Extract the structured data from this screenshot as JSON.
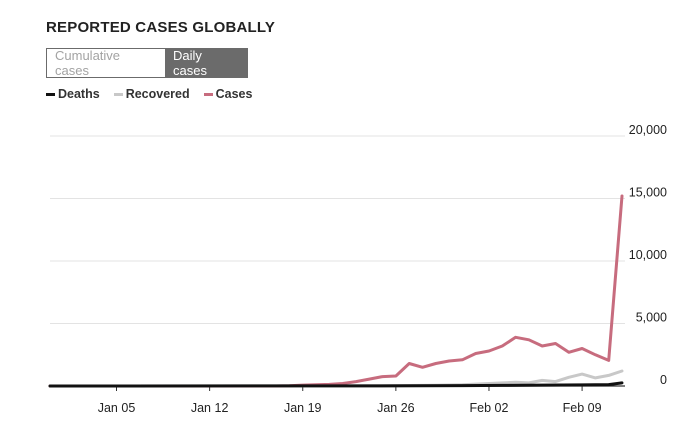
{
  "title": "REPORTED CASES GLOBALLY",
  "toggle": {
    "cumulative_label": "Cumulative cases",
    "daily_label": "Daily cases",
    "selected": "Daily cases"
  },
  "legend": [
    {
      "name": "Deaths",
      "color": "#111111"
    },
    {
      "name": "Recovered",
      "color": "#c8c8c8"
    },
    {
      "name": "Cases",
      "color": "#c76c7e"
    }
  ],
  "chart_data": {
    "type": "line",
    "title": "REPORTED CASES GLOBALLY",
    "xlabel": "",
    "ylabel": "",
    "x_start": "Dec 31",
    "x_end": "Feb 12",
    "x_ticks": [
      {
        "label": "Jan 05",
        "day": 5
      },
      {
        "label": "Jan 12",
        "day": 12
      },
      {
        "label": "Jan 19",
        "day": 19
      },
      {
        "label": "Jan 26",
        "day": 26
      },
      {
        "label": "Feb 02",
        "day": 33
      },
      {
        "label": "Feb 09",
        "day": 40
      }
    ],
    "y_ticks": [
      {
        "label": "0",
        "value": 0
      },
      {
        "label": "5,000",
        "value": 5000
      },
      {
        "label": "10,000",
        "value": 10000
      },
      {
        "label": "15,000",
        "value": 15000
      },
      {
        "label": "20,000",
        "value": 20000
      }
    ],
    "ylim": [
      0,
      20000
    ],
    "xlim": [
      0,
      43
    ],
    "grid": true,
    "series": [
      {
        "name": "Recovered",
        "color": "#c8c8c8",
        "x": [
          0,
          18,
          20,
          22,
          24,
          26,
          27,
          28,
          29,
          30,
          31,
          32,
          33,
          34,
          35,
          36,
          37,
          38,
          39,
          40,
          41,
          42,
          43
        ],
        "values": [
          0,
          0,
          5,
          10,
          20,
          30,
          40,
          50,
          60,
          80,
          100,
          150,
          200,
          250,
          300,
          250,
          450,
          350,
          700,
          950,
          650,
          850,
          1200
        ]
      },
      {
        "name": "Cases",
        "color": "#c76c7e",
        "x": [
          0,
          17,
          18,
          19,
          20,
          21,
          22,
          23,
          24,
          25,
          26,
          27,
          28,
          29,
          30,
          31,
          32,
          33,
          34,
          35,
          36,
          37,
          38,
          39,
          40,
          41,
          42,
          43
        ],
        "values": [
          0,
          0,
          20,
          70,
          100,
          130,
          200,
          350,
          550,
          750,
          800,
          1800,
          1500,
          1800,
          2000,
          2100,
          2600,
          2800,
          3200,
          3900,
          3700,
          3200,
          3400,
          2700,
          3000,
          2500,
          2050,
          15200
        ]
      },
      {
        "name": "Deaths",
        "color": "#111111",
        "x": [
          0,
          20,
          24,
          28,
          31,
          34,
          37,
          40,
          42,
          43
        ],
        "values": [
          0,
          5,
          10,
          20,
          30,
          50,
          70,
          90,
          110,
          250
        ]
      }
    ]
  }
}
